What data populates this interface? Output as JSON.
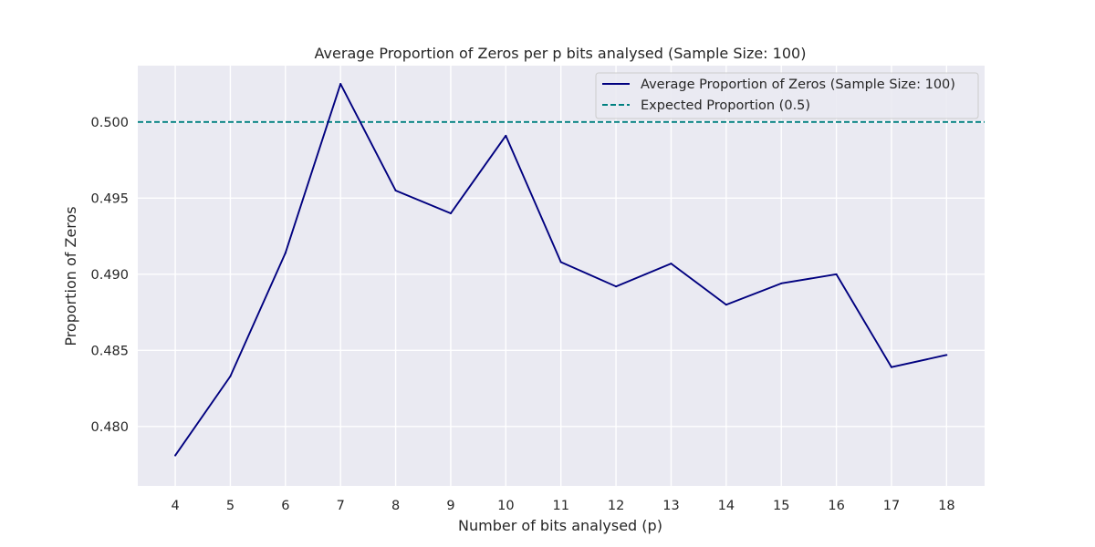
{
  "chart_data": {
    "type": "line",
    "title": "Average Proportion of Zeros per p bits analysed (Sample Size: 100)",
    "xlabel": "Number of bits analysed (p)",
    "ylabel": "Proportion of Zeros",
    "x": [
      4,
      5,
      6,
      7,
      8,
      9,
      10,
      11,
      12,
      13,
      14,
      15,
      16,
      17,
      18
    ],
    "x_tick_labels": [
      "4",
      "5",
      "6",
      "7",
      "8",
      "9",
      "10",
      "11",
      "12",
      "13",
      "14",
      "15",
      "16",
      "17",
      "18"
    ],
    "y_tick_values": [
      0.48,
      0.485,
      0.49,
      0.495,
      0.5
    ],
    "y_tick_labels": [
      "0.480",
      "0.485",
      "0.490",
      "0.495",
      "0.500"
    ],
    "xlim": [
      3.32,
      18.69
    ],
    "ylim": [
      0.4761,
      0.5037
    ],
    "grid": true,
    "legend_position": "top-right",
    "series": [
      {
        "name": "Average Proportion of Zeros (Sample Size: 100)",
        "style": "solid",
        "color": "#00007f",
        "values": [
          0.4781,
          0.4833,
          0.4914,
          0.5025,
          0.4955,
          0.494,
          0.4991,
          0.4908,
          0.4892,
          0.4907,
          0.488,
          0.4894,
          0.49,
          0.4839,
          0.4847
        ]
      }
    ],
    "reference_lines": [
      {
        "name": "Expected Proportion (0.5)",
        "y": 0.5,
        "style": "dashed",
        "color": "#008080"
      }
    ],
    "colors": {
      "plot_background": "#eaeaf2",
      "grid": "#ffffff",
      "text": "#262626"
    }
  }
}
